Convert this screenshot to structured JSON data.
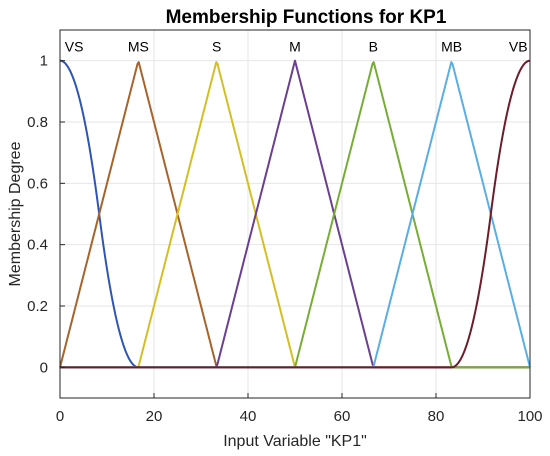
{
  "chart_data": {
    "type": "line",
    "title": "Membership Functions for KP1",
    "xlabel": "Input Variable \"KP1\"",
    "ylabel": "Membership Degree",
    "xlim": [
      0,
      100
    ],
    "ylim": [
      -0.1,
      1.1
    ],
    "grid": true,
    "xticks": [
      0,
      20,
      40,
      60,
      80,
      100
    ],
    "xtick_labels": [
      "0",
      "20",
      "40",
      "60",
      "80",
      "100"
    ],
    "yticks": [
      0,
      0.2,
      0.4,
      0.6,
      0.8,
      1
    ],
    "ytick_labels": [
      "0",
      "0.2",
      "0.4",
      "0.6",
      "0.8",
      "1"
    ],
    "series": [
      {
        "name": "VS",
        "shape": "zmf",
        "params": [
          0,
          16.67
        ],
        "color": "#2f55b4",
        "label_x": 3
      },
      {
        "name": "MS",
        "shape": "trimf",
        "params": [
          0,
          16.67,
          33.33
        ],
        "color": "#a8632b",
        "label_x": 16.67
      },
      {
        "name": "S",
        "shape": "trimf",
        "params": [
          16.67,
          33.33,
          50
        ],
        "color": "#d4bf22",
        "label_x": 33.33
      },
      {
        "name": "M",
        "shape": "trimf",
        "params": [
          33.33,
          50,
          66.67
        ],
        "color": "#6a3f8f",
        "label_x": 50
      },
      {
        "name": "B",
        "shape": "trimf",
        "params": [
          50,
          66.67,
          83.33
        ],
        "color": "#77ad34",
        "label_x": 66.67
      },
      {
        "name": "MB",
        "shape": "trimf",
        "params": [
          66.67,
          83.33,
          100
        ],
        "color": "#5aaee6",
        "label_x": 83.33
      },
      {
        "name": "VB",
        "shape": "smf",
        "params": [
          83.33,
          100
        ],
        "color": "#6d1d2a",
        "label_x": 97.5
      }
    ]
  }
}
